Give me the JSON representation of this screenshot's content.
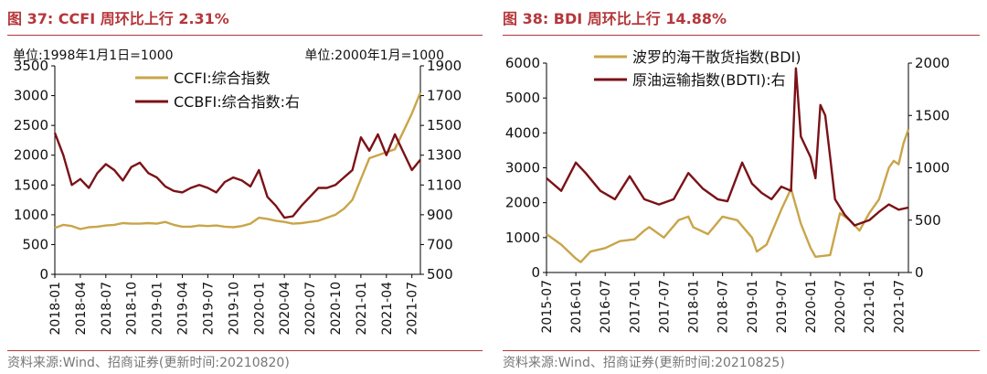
{
  "figures": [
    {
      "title": "图 37:  CCFI 周环比上行 2.31%",
      "source": "资料来源:Wind、招商证券(更新时间:20210820)",
      "unit_left": "单位:1998年1月1日=1000",
      "unit_right": "单位:2000年1月=1000"
    },
    {
      "title": "图 38:  BDI 周环比上行 14.88%",
      "source": "资料来源:Wind、招商证券(更新时间:20210825)"
    }
  ],
  "chart_data": [
    {
      "type": "line",
      "title": "",
      "x_tick_labels": [
        "2018-01",
        "2018-04",
        "2018-07",
        "2018-10",
        "2019-01",
        "2019-04",
        "2019-07",
        "2019-10",
        "2020-01",
        "2020-04",
        "2020-07",
        "2020-10",
        "2021-01",
        "2021-04",
        "2021-07"
      ],
      "x_range": [
        "2018-01",
        "2021-08"
      ],
      "left_axis": {
        "range": [
          0,
          3500
        ],
        "ticks": [
          0,
          500,
          1000,
          1500,
          2000,
          2500,
          3000,
          3500
        ]
      },
      "right_axis": {
        "range": [
          500,
          1900
        ],
        "ticks": [
          500,
          700,
          900,
          1100,
          1300,
          1500,
          1700,
          1900
        ]
      },
      "legend_position": "top-center",
      "grid": false,
      "series": [
        {
          "name": "CCFI:综合指数",
          "axis": "left",
          "color": "#c9a54a",
          "points": [
            [
              "2018-01",
              780
            ],
            [
              "2018-02",
              830
            ],
            [
              "2018-03",
              810
            ],
            [
              "2018-04",
              760
            ],
            [
              "2018-05",
              790
            ],
            [
              "2018-06",
              800
            ],
            [
              "2018-07",
              820
            ],
            [
              "2018-08",
              830
            ],
            [
              "2018-09",
              860
            ],
            [
              "2018-10",
              850
            ],
            [
              "2018-11",
              850
            ],
            [
              "2018-12",
              860
            ],
            [
              "2019-01",
              850
            ],
            [
              "2019-02",
              880
            ],
            [
              "2019-03",
              830
            ],
            [
              "2019-04",
              800
            ],
            [
              "2019-05",
              800
            ],
            [
              "2019-06",
              820
            ],
            [
              "2019-07",
              810
            ],
            [
              "2019-08",
              820
            ],
            [
              "2019-09",
              800
            ],
            [
              "2019-10",
              790
            ],
            [
              "2019-11",
              810
            ],
            [
              "2019-12",
              850
            ],
            [
              "2020-01",
              950
            ],
            [
              "2020-02",
              930
            ],
            [
              "2020-03",
              900
            ],
            [
              "2020-04",
              880
            ],
            [
              "2020-05",
              850
            ],
            [
              "2020-06",
              860
            ],
            [
              "2020-07",
              880
            ],
            [
              "2020-08",
              900
            ],
            [
              "2020-09",
              950
            ],
            [
              "2020-10",
              1000
            ],
            [
              "2020-11",
              1100
            ],
            [
              "2020-12",
              1250
            ],
            [
              "2021-01",
              1600
            ],
            [
              "2021-02",
              1950
            ],
            [
              "2021-03",
              2000
            ],
            [
              "2021-04",
              2050
            ],
            [
              "2021-05",
              2100
            ],
            [
              "2021-06",
              2400
            ],
            [
              "2021-07",
              2700
            ],
            [
              "2021-08",
              3050
            ]
          ]
        },
        {
          "name": "CCBFI:综合指数:右",
          "axis": "right",
          "color": "#7a1218",
          "points": [
            [
              "2018-01",
              1450
            ],
            [
              "2018-02",
              1300
            ],
            [
              "2018-03",
              1100
            ],
            [
              "2018-04",
              1140
            ],
            [
              "2018-05",
              1080
            ],
            [
              "2018-06",
              1180
            ],
            [
              "2018-07",
              1240
            ],
            [
              "2018-08",
              1200
            ],
            [
              "2018-09",
              1130
            ],
            [
              "2018-10",
              1220
            ],
            [
              "2018-11",
              1250
            ],
            [
              "2018-12",
              1180
            ],
            [
              "2019-01",
              1150
            ],
            [
              "2019-02",
              1090
            ],
            [
              "2019-03",
              1060
            ],
            [
              "2019-04",
              1050
            ],
            [
              "2019-05",
              1080
            ],
            [
              "2019-06",
              1100
            ],
            [
              "2019-07",
              1080
            ],
            [
              "2019-08",
              1050
            ],
            [
              "2019-09",
              1120
            ],
            [
              "2019-10",
              1150
            ],
            [
              "2019-11",
              1130
            ],
            [
              "2019-12",
              1090
            ],
            [
              "2020-01",
              1200
            ],
            [
              "2020-02",
              1020
            ],
            [
              "2020-03",
              960
            ],
            [
              "2020-04",
              880
            ],
            [
              "2020-05",
              890
            ],
            [
              "2020-06",
              960
            ],
            [
              "2020-07",
              1020
            ],
            [
              "2020-08",
              1080
            ],
            [
              "2020-09",
              1080
            ],
            [
              "2020-10",
              1100
            ],
            [
              "2020-11",
              1150
            ],
            [
              "2020-12",
              1200
            ],
            [
              "2021-01",
              1420
            ],
            [
              "2021-02",
              1330
            ],
            [
              "2021-03",
              1440
            ],
            [
              "2021-04",
              1300
            ],
            [
              "2021-05",
              1440
            ],
            [
              "2021-06",
              1320
            ],
            [
              "2021-07",
              1200
            ],
            [
              "2021-08",
              1270
            ]
          ]
        }
      ]
    },
    {
      "type": "line",
      "title": "",
      "x_tick_labels": [
        "2015-07",
        "2016-01",
        "2016-07",
        "2017-01",
        "2017-07",
        "2018-01",
        "2018-07",
        "2019-01",
        "2019-07",
        "2020-01",
        "2020-07",
        "2021-01",
        "2021-07"
      ],
      "x_range": [
        "2015-07",
        "2021-09"
      ],
      "left_axis": {
        "range": [
          0,
          6000
        ],
        "ticks": [
          0,
          1000,
          2000,
          3000,
          4000,
          5000,
          6000
        ]
      },
      "right_axis": {
        "range": [
          0,
          2000
        ],
        "ticks": [
          0,
          500,
          1000,
          1500,
          2000
        ]
      },
      "legend_position": "top-center",
      "grid": false,
      "series": [
        {
          "name": "波罗的海干散货指数(BDI)",
          "axis": "left",
          "color": "#c9a54a",
          "points": [
            [
              "2015-07",
              1100
            ],
            [
              "2015-10",
              800
            ],
            [
              "2016-01",
              400
            ],
            [
              "2016-02",
              300
            ],
            [
              "2016-04",
              600
            ],
            [
              "2016-07",
              700
            ],
            [
              "2016-10",
              900
            ],
            [
              "2017-01",
              950
            ],
            [
              "2017-03",
              1200
            ],
            [
              "2017-04",
              1300
            ],
            [
              "2017-07",
              1000
            ],
            [
              "2017-10",
              1500
            ],
            [
              "2017-12",
              1600
            ],
            [
              "2018-01",
              1300
            ],
            [
              "2018-04",
              1100
            ],
            [
              "2018-07",
              1600
            ],
            [
              "2018-10",
              1500
            ],
            [
              "2019-01",
              1000
            ],
            [
              "2019-02",
              600
            ],
            [
              "2019-04",
              800
            ],
            [
              "2019-07",
              1800
            ],
            [
              "2019-09",
              2400
            ],
            [
              "2019-11",
              1400
            ],
            [
              "2020-01",
              700
            ],
            [
              "2020-02",
              450
            ],
            [
              "2020-05",
              500
            ],
            [
              "2020-07",
              1700
            ],
            [
              "2020-09",
              1500
            ],
            [
              "2020-11",
              1200
            ],
            [
              "2021-01",
              1700
            ],
            [
              "2021-03",
              2100
            ],
            [
              "2021-05",
              3000
            ],
            [
              "2021-06",
              3200
            ],
            [
              "2021-07",
              3100
            ],
            [
              "2021-08",
              3700
            ],
            [
              "2021-09",
              4100
            ]
          ]
        },
        {
          "name": "原油运输指数(BDTI):右",
          "axis": "right",
          "color": "#7a1218",
          "points": [
            [
              "2015-07",
              900
            ],
            [
              "2015-10",
              780
            ],
            [
              "2016-01",
              1050
            ],
            [
              "2016-03",
              950
            ],
            [
              "2016-06",
              780
            ],
            [
              "2016-09",
              700
            ],
            [
              "2016-12",
              920
            ],
            [
              "2017-03",
              700
            ],
            [
              "2017-06",
              650
            ],
            [
              "2017-09",
              700
            ],
            [
              "2017-12",
              950
            ],
            [
              "2018-03",
              800
            ],
            [
              "2018-06",
              700
            ],
            [
              "2018-08",
              680
            ],
            [
              "2018-11",
              1050
            ],
            [
              "2019-01",
              850
            ],
            [
              "2019-03",
              760
            ],
            [
              "2019-05",
              700
            ],
            [
              "2019-07",
              820
            ],
            [
              "2019-09",
              780
            ],
            [
              "2019-10",
              1950
            ],
            [
              "2019-11",
              1300
            ],
            [
              "2020-01",
              1100
            ],
            [
              "2020-02",
              900
            ],
            [
              "2020-03",
              1600
            ],
            [
              "2020-04",
              1500
            ],
            [
              "2020-05",
              1100
            ],
            [
              "2020-06",
              700
            ],
            [
              "2020-08",
              550
            ],
            [
              "2020-10",
              450
            ],
            [
              "2021-01",
              500
            ],
            [
              "2021-03",
              580
            ],
            [
              "2021-05",
              650
            ],
            [
              "2021-07",
              600
            ],
            [
              "2021-09",
              620
            ]
          ]
        }
      ]
    }
  ]
}
